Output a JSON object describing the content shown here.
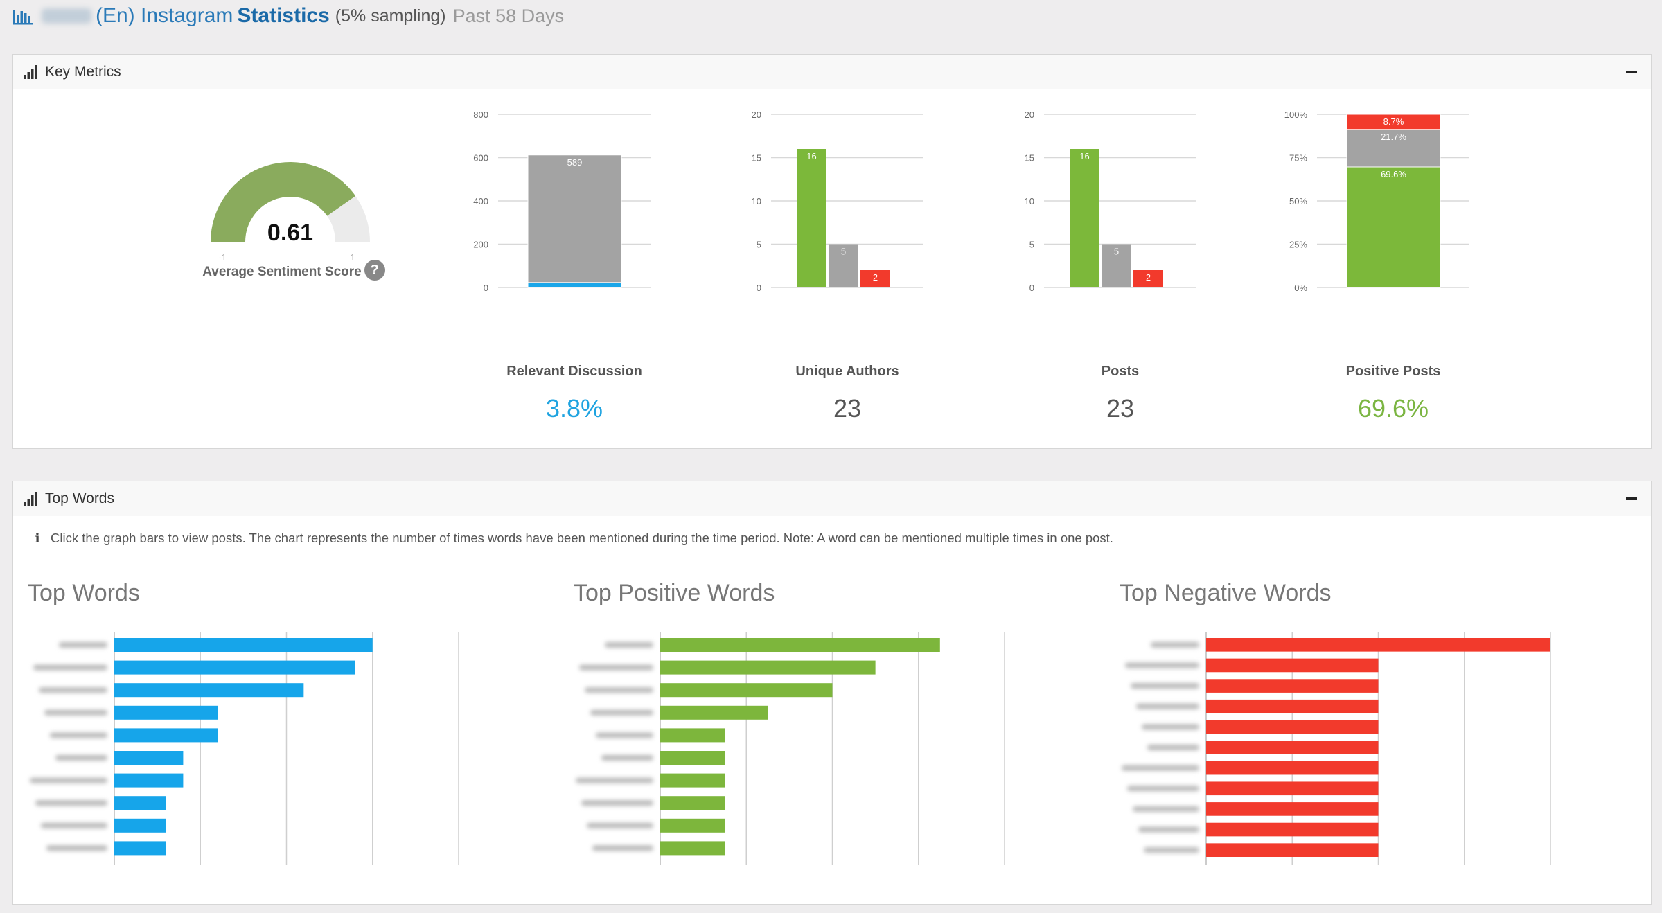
{
  "header": {
    "title_prefix": "(En) Instagram",
    "title_strong": "Statistics",
    "sampling": "(5% sampling)",
    "period": "Past 58 Days"
  },
  "key_metrics": {
    "title": "Key Metrics",
    "gauge": {
      "value": "0.61",
      "value_num": 0.61,
      "min": "-1",
      "max": "1",
      "label": "Average Sentiment Score",
      "help": "?",
      "colors": {
        "fill": "#8aab5d",
        "track": "#ebebeb"
      }
    },
    "metrics": [
      {
        "name": "Relevant Discussion",
        "value": "3.8%",
        "value_color": "#1ea3e0"
      },
      {
        "name": "Unique Authors",
        "value": "23",
        "value_color": "#555555"
      },
      {
        "name": "Posts",
        "value": "23",
        "value_color": "#555555"
      },
      {
        "name": "Positive Posts",
        "value": "69.6%",
        "value_color": "#7bb542"
      }
    ]
  },
  "top_words": {
    "title": "Top Words",
    "info": "Click the graph bars to view posts. The chart represents the number of times words have been mentioned during the time period. Note: A word can be mentioned multiple times in one post.",
    "charts": [
      {
        "title": "Top Words",
        "color": "#16a5ea"
      },
      {
        "title": "Top Positive Words",
        "color": "#7db63c"
      },
      {
        "title": "Top Negative Words",
        "color": "#f23a2c"
      }
    ]
  },
  "chart_data": [
    {
      "type": "bar",
      "chart": "Relevant Discussion",
      "stacked": true,
      "ylim": [
        0,
        800
      ],
      "yticks": [
        "0",
        "200",
        "400",
        "600",
        "800"
      ],
      "series": [
        {
          "values": [
            23
          ],
          "color": "#1ba6e8"
        },
        {
          "values": [
            589
          ],
          "color": "#a3a3a3"
        }
      ],
      "data_labels": [
        "23",
        "589"
      ]
    },
    {
      "type": "bar",
      "chart": "Unique Authors",
      "ylim": [
        0,
        20
      ],
      "yticks": [
        "0",
        "5",
        "10",
        "15",
        "20"
      ],
      "values": [
        16,
        5,
        2
      ],
      "colors": [
        "#7cb83a",
        "#a3a3a3",
        "#f23a2c"
      ],
      "data_labels": [
        "16",
        "5",
        "2"
      ]
    },
    {
      "type": "bar",
      "chart": "Posts",
      "ylim": [
        0,
        20
      ],
      "yticks": [
        "0",
        "5",
        "10",
        "15",
        "20"
      ],
      "values": [
        16,
        5,
        2
      ],
      "colors": [
        "#7cb83a",
        "#a3a3a3",
        "#f23a2c"
      ],
      "data_labels": [
        "16",
        "5",
        "2"
      ]
    },
    {
      "type": "bar",
      "chart": "Positive Posts",
      "stacked": true,
      "ylim": [
        0,
        100
      ],
      "yticks": [
        "0%",
        "25%",
        "50%",
        "75%",
        "100%"
      ],
      "series": [
        {
          "values": [
            69.6
          ],
          "color": "#7cb83a"
        },
        {
          "values": [
            21.7
          ],
          "color": "#a3a3a3"
        },
        {
          "values": [
            8.7
          ],
          "color": "#f23a2c"
        }
      ],
      "data_labels": [
        "69.6%",
        "21.7%",
        "8.7%"
      ]
    },
    {
      "type": "bar",
      "chart": "Top Words",
      "orientation": "horizontal",
      "values": [
        6,
        5.6,
        4.4,
        2.4,
        2.4,
        1.6,
        1.6,
        1.2,
        1.2,
        1.2
      ],
      "xlim": [
        0,
        8
      ],
      "grid": true,
      "color": "#16a5ea"
    },
    {
      "type": "bar",
      "chart": "Top Positive Words",
      "orientation": "horizontal",
      "values": [
        6.5,
        5,
        4,
        2.5,
        1.5,
        1.5,
        1.5,
        1.5,
        1.5,
        1.5
      ],
      "xlim": [
        0,
        8
      ],
      "grid": true,
      "color": "#7db63c"
    },
    {
      "type": "bar",
      "chart": "Top Negative Words",
      "orientation": "horizontal",
      "values": [
        4,
        2,
        2,
        2,
        2,
        2,
        2,
        2,
        2,
        2,
        2
      ],
      "xlim": [
        0,
        4
      ],
      "grid": true,
      "color": "#f23a2c"
    }
  ]
}
